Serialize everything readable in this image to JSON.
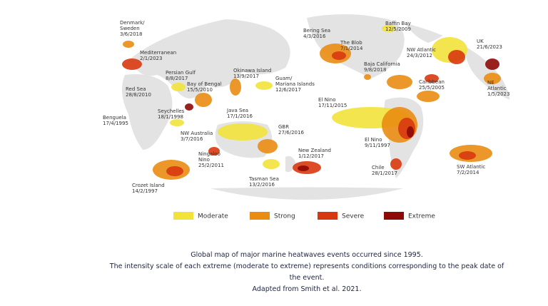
{
  "map": {
    "events": [
      {
        "name": [
          "Denmark/",
          "Sweden"
        ],
        "date": "3/6/2018"
      },
      {
        "name": [
          "Mediterranean"
        ],
        "date": "2/1/2023"
      },
      {
        "name": [
          "Persian Gulf"
        ],
        "date": "8/8/2017"
      },
      {
        "name": [
          "Red Sea"
        ],
        "date": "28/8/2010"
      },
      {
        "name": [
          "Bay of Bengal"
        ],
        "date": "15/5/2010"
      },
      {
        "name": [
          "Seychelles"
        ],
        "date": "18/1/1998"
      },
      {
        "name": [
          "Benguela"
        ],
        "date": "17/4/1995"
      },
      {
        "name": [
          "NW Australia"
        ],
        "date": "3/7/2016"
      },
      {
        "name": [
          "Java Sea"
        ],
        "date": "17/1/2016"
      },
      {
        "name": [
          "Okinawa Island"
        ],
        "date": "13/9/2017"
      },
      {
        "name": [
          "Guam/",
          "Mariana Islands"
        ],
        "date": "12/6/2017"
      },
      {
        "name": [
          "GBR"
        ],
        "date": "27/6/2016"
      },
      {
        "name": [
          "Ningaloo",
          "Nino"
        ],
        "date": "25/2/2011"
      },
      {
        "name": [
          "Crozet Island"
        ],
        "date": "14/2/1997"
      },
      {
        "name": [
          "Tasman Sea"
        ],
        "date": "13/2/2016"
      },
      {
        "name": [
          "New Zealand"
        ],
        "date": "1/12/2017"
      },
      {
        "name": [
          "Bering Sea"
        ],
        "date": "4/3/2016"
      },
      {
        "name": [
          "The Blob"
        ],
        "date": "7/1/2014"
      },
      {
        "name": [
          "Baja California"
        ],
        "date": "9/8/2018"
      },
      {
        "name": [
          "Baffin Bay"
        ],
        "date": "12/5/2009"
      },
      {
        "name": [
          "NW Atlantic"
        ],
        "date": "24/3/2012"
      },
      {
        "name": [
          "UK"
        ],
        "date": "21/6/2023"
      },
      {
        "name": [
          "Caribbean"
        ],
        "date": "25/5/2005"
      },
      {
        "name": [
          "NE",
          "Atlantic"
        ],
        "date": "1/5/2023"
      },
      {
        "name": [
          "El Nino"
        ],
        "date": "17/11/2015"
      },
      {
        "name": [
          "El Nino"
        ],
        "date": "9/11/1997"
      },
      {
        "name": [
          "Chile"
        ],
        "date": "28/1/2017"
      },
      {
        "name": [
          "SW Atlantic"
        ],
        "date": "7/2/2014"
      }
    ],
    "legend": [
      {
        "label": "Moderate",
        "color": "#f2e23a"
      },
      {
        "label": "Strong",
        "color": "#ea8c12"
      },
      {
        "label": "Severe",
        "color": "#d8380f"
      },
      {
        "label": "Extreme",
        "color": "#8e0a06"
      }
    ],
    "caption": [
      "Global map of major marine heatwaves events occurred since 1995.",
      "The intensity scale of each extreme (moderate to extreme) represents conditions corresponding to the peak date of",
      "the event.",
      "Adapted from Smith et al. 2021."
    ]
  }
}
